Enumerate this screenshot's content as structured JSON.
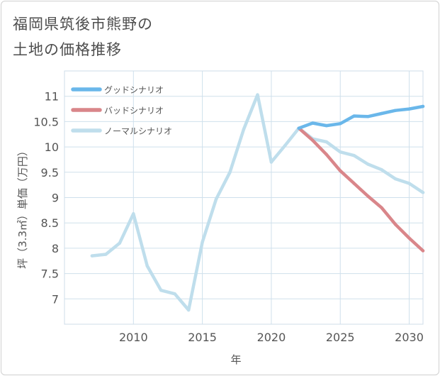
{
  "title_lines": [
    "福岡県筑後市熊野の",
    "土地の価格推移"
  ],
  "chart_data": {
    "type": "line",
    "title": "福岡県筑後市熊野の土地の価格推移",
    "xlabel": "年",
    "ylabel": "坪（3.3㎡）単価（万円）",
    "xlim": [
      2005,
      2031
    ],
    "ylim": [
      6.5,
      11.5
    ],
    "x_ticks": [
      2010,
      2015,
      2020,
      2025,
      2030
    ],
    "y_ticks": [
      7,
      7.5,
      8,
      8.5,
      9,
      9.5,
      10,
      10.5,
      11
    ],
    "grid": true,
    "legend_position": "top-left",
    "series": [
      {
        "name": "グッドシナリオ",
        "color": "#6ab7ea",
        "x": [
          2022,
          2023,
          2024,
          2025,
          2026,
          2027,
          2028,
          2029,
          2030,
          2031
        ],
        "values": [
          10.37,
          10.47,
          10.42,
          10.46,
          10.61,
          10.6,
          10.66,
          10.72,
          10.75,
          10.8
        ]
      },
      {
        "name": "バッドシナリオ",
        "color": "#d9868a",
        "x": [
          2022,
          2023,
          2024,
          2025,
          2026,
          2027,
          2028,
          2029,
          2030,
          2031
        ],
        "values": [
          10.37,
          10.13,
          9.85,
          9.53,
          9.28,
          9.03,
          8.8,
          8.47,
          8.2,
          7.95
        ]
      },
      {
        "name": "ノーマルシナリオ",
        "color": "#bfdeec",
        "x": [
          2007,
          2008,
          2009,
          2010,
          2011,
          2012,
          2013,
          2014,
          2015,
          2016,
          2017,
          2018,
          2019,
          2020,
          2021,
          2022,
          2023,
          2024,
          2025,
          2026,
          2027,
          2028,
          2029,
          2030,
          2031
        ],
        "values": [
          7.85,
          7.88,
          8.1,
          8.68,
          7.65,
          7.17,
          7.1,
          6.78,
          8.12,
          8.97,
          9.5,
          10.35,
          11.03,
          9.7,
          10.03,
          10.37,
          10.16,
          10.1,
          9.9,
          9.83,
          9.66,
          9.55,
          9.37,
          9.28,
          9.1
        ]
      }
    ]
  }
}
